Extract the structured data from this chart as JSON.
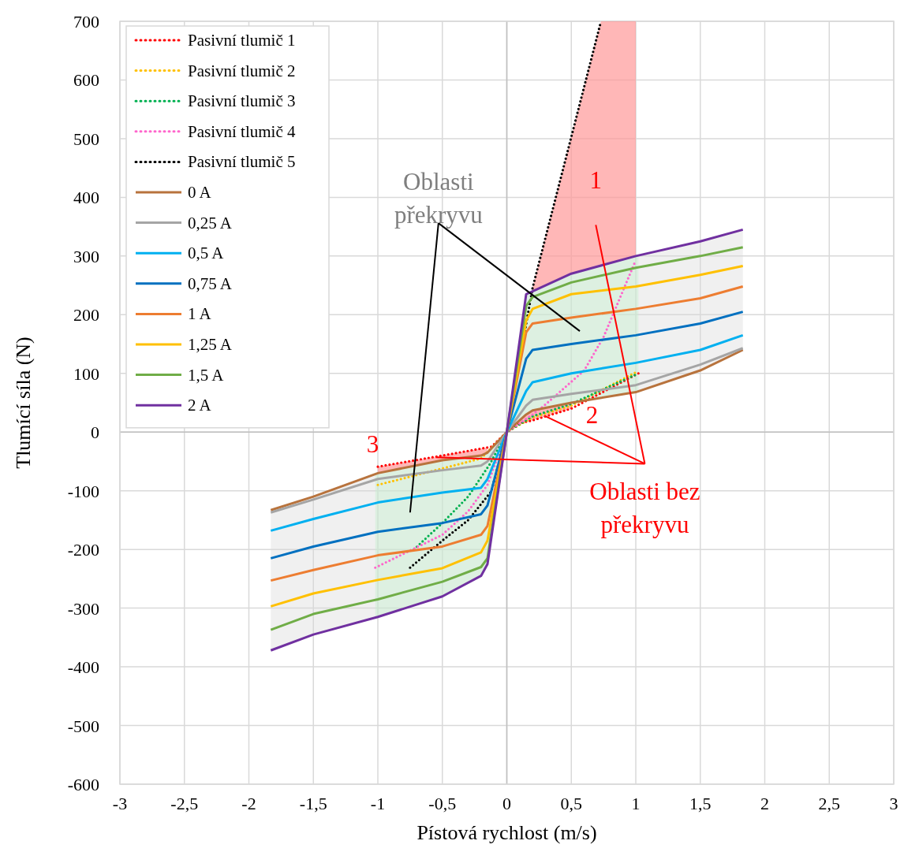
{
  "chart_data": {
    "type": "line",
    "xlabel": "Pístová rychlost (m/s)",
    "ylabel": "Tlumící síla (N)",
    "xlim": [
      -3,
      3
    ],
    "ylim": [
      -600,
      700
    ],
    "xticks": [
      {
        "value": -3,
        "label": "-3"
      },
      {
        "value": -2.5,
        "label": "-2,5"
      },
      {
        "value": -2,
        "label": "-2"
      },
      {
        "value": -1.5,
        "label": "-1,5"
      },
      {
        "value": -1,
        "label": "-1"
      },
      {
        "value": -0.5,
        "label": "-0,5"
      },
      {
        "value": 0,
        "label": "0"
      },
      {
        "value": 0.5,
        "label": "0,5"
      },
      {
        "value": 1,
        "label": "1"
      },
      {
        "value": 1.5,
        "label": "1,5"
      },
      {
        "value": 2,
        "label": "2"
      },
      {
        "value": 2.5,
        "label": "2,5"
      },
      {
        "value": 3,
        "label": "3"
      }
    ],
    "yticks": [
      -600,
      -500,
      -400,
      -300,
      -200,
      -100,
      0,
      100,
      200,
      300,
      400,
      500,
      600,
      700
    ],
    "grid": true,
    "legend": "top left",
    "series": [
      {
        "name": "Pasivní tlumič 1",
        "color": "#ff0000",
        "line_style": "dotted",
        "x": [
          -1,
          -0.5,
          -0.12,
          0,
          0.1,
          0.2,
          0.5,
          1.02
        ],
        "values": [
          -59,
          -40,
          -25,
          0,
          15,
          20,
          40,
          100
        ]
      },
      {
        "name": "Pasivní tlumič 2",
        "color": "#ffc000",
        "line_style": "dotted",
        "x": [
          -1,
          -0.5,
          -0.2,
          0,
          0.2,
          0.5,
          1.02
        ],
        "values": [
          -90,
          -62,
          -45,
          0,
          25,
          45,
          104
        ]
      },
      {
        "name": "Pasivní tlumič 3",
        "color": "#00b050",
        "line_style": "dotted",
        "x": [
          -0.72,
          -0.5,
          -0.3,
          -0.13,
          0,
          0.2,
          0.5,
          1.02
        ],
        "values": [
          -200,
          -155,
          -110,
          -54,
          0,
          27,
          48,
          100
        ]
      },
      {
        "name": "Pasivní tlumič 4",
        "color": "#ff66cc",
        "line_style": "dotted",
        "x": [
          -1.02,
          -0.5,
          -0.3,
          -0.15,
          0,
          0.2,
          0.3,
          0.6,
          0.75,
          1
        ],
        "values": [
          -231,
          -175,
          -135,
          -90,
          0,
          30,
          47,
          105,
          162,
          293
        ]
      },
      {
        "name": "Pasivní tlumič 5",
        "color": "#000000",
        "line_style": "dotted",
        "x": [
          -0.75,
          -0.5,
          -0.3,
          -0.12,
          0,
          0.2,
          0.73
        ],
        "values": [
          -231,
          -185,
          -150,
          -101,
          0,
          246,
          700
        ]
      },
      {
        "name": "0 A",
        "color": "#b8733d",
        "line_style": "solid",
        "x": [
          -1.83,
          -1.5,
          -1,
          -0.5,
          -0.2,
          -0.15,
          0,
          0.15,
          0.2,
          0.5,
          1,
          1.5,
          1.83
        ],
        "values": [
          -133,
          -110,
          -70,
          -48,
          -40,
          -35,
          0,
          30,
          37,
          50,
          68,
          105,
          140
        ]
      },
      {
        "name": "0,25 A",
        "color": "#a5a5a5",
        "line_style": "solid",
        "x": [
          -1.83,
          -1.5,
          -1,
          -0.5,
          -0.2,
          -0.15,
          0,
          0.15,
          0.2,
          0.5,
          1,
          1.5,
          1.83
        ],
        "values": [
          -137,
          -115,
          -80,
          -65,
          -57,
          -50,
          0,
          45,
          55,
          65,
          80,
          115,
          143
        ]
      },
      {
        "name": "0,5 A",
        "color": "#00b0f0",
        "line_style": "solid",
        "x": [
          -1.83,
          -1.5,
          -1,
          -0.5,
          -0.2,
          -0.15,
          0,
          0.15,
          0.2,
          0.5,
          1,
          1.5,
          1.83
        ],
        "values": [
          -168,
          -148,
          -120,
          -103,
          -95,
          -80,
          0,
          70,
          85,
          100,
          118,
          140,
          165
        ]
      },
      {
        "name": "0,75 A",
        "color": "#0070c0",
        "line_style": "solid",
        "x": [
          -1.83,
          -1.5,
          -1,
          -0.5,
          -0.2,
          -0.15,
          0,
          0.15,
          0.2,
          0.5,
          1,
          1.5,
          1.83
        ],
        "values": [
          -215,
          -195,
          -170,
          -155,
          -140,
          -125,
          0,
          125,
          140,
          150,
          165,
          185,
          205
        ]
      },
      {
        "name": "1 A",
        "color": "#ed7d31",
        "line_style": "solid",
        "x": [
          -1.83,
          -1.5,
          -1,
          -0.5,
          -0.2,
          -0.15,
          0,
          0.15,
          0.2,
          0.5,
          1,
          1.5,
          1.83
        ],
        "values": [
          -253,
          -235,
          -210,
          -195,
          -175,
          -160,
          0,
          170,
          185,
          195,
          210,
          228,
          248
        ]
      },
      {
        "name": "1,25 A",
        "color": "#ffc000",
        "line_style": "solid",
        "x": [
          -1.83,
          -1.5,
          -1,
          -0.5,
          -0.2,
          -0.15,
          0,
          0.15,
          0.2,
          0.5,
          1,
          1.5,
          1.83
        ],
        "values": [
          -297,
          -275,
          -252,
          -232,
          -205,
          -185,
          0,
          190,
          210,
          235,
          248,
          268,
          283
        ]
      },
      {
        "name": "1,5 A",
        "color": "#70ad47",
        "line_style": "solid",
        "x": [
          -1.83,
          -1.5,
          -1,
          -0.5,
          -0.2,
          -0.15,
          0,
          0.15,
          0.2,
          0.5,
          1,
          1.5,
          1.83
        ],
        "values": [
          -337,
          -310,
          -285,
          -255,
          -230,
          -215,
          0,
          215,
          230,
          255,
          280,
          300,
          315
        ]
      },
      {
        "name": "2 A",
        "color": "#7030a0",
        "line_style": "solid",
        "x": [
          -1.83,
          -1.5,
          -1,
          -0.5,
          -0.2,
          -0.15,
          0,
          0.15,
          0.2,
          0.5,
          1,
          1.5,
          1.83
        ],
        "values": [
          -372,
          -345,
          -315,
          -280,
          -245,
          -225,
          0,
          235,
          240,
          270,
          300,
          325,
          345
        ]
      }
    ],
    "annotations": [
      "Oblasti překryvu",
      "1",
      "2",
      "3",
      {
        "text": "Oblasti bez překryvu",
        "x": 0.29,
        "y": 28
      }
    ]
  }
}
